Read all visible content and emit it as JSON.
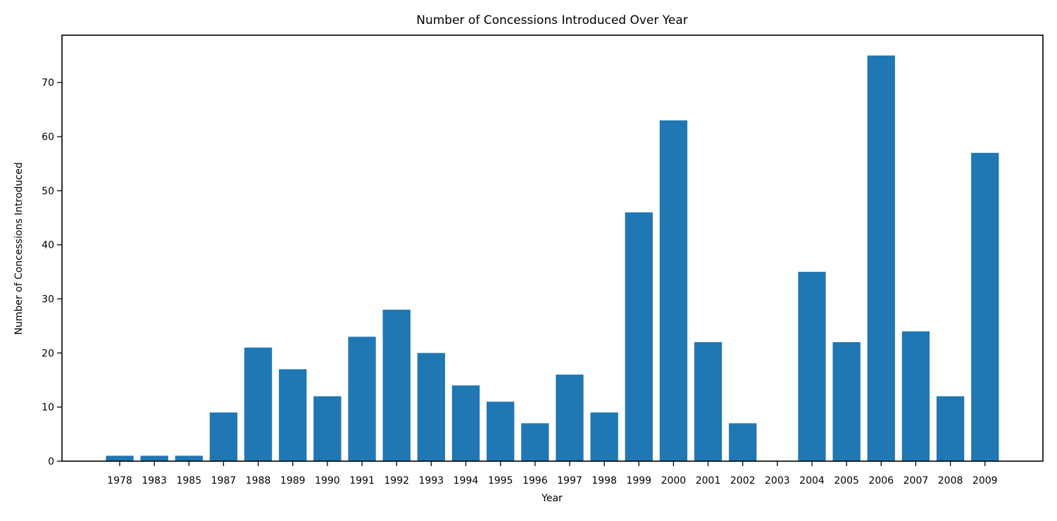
{
  "chart_data": {
    "type": "bar",
    "title": "Number of Concessions Introduced Over Year",
    "xlabel": "Year",
    "ylabel": "Number of Concessions Introduced",
    "categories": [
      "1978",
      "1983",
      "1985",
      "1987",
      "1988",
      "1989",
      "1990",
      "1991",
      "1992",
      "1993",
      "1994",
      "1995",
      "1996",
      "1997",
      "1998",
      "1999",
      "2000",
      "2001",
      "2002",
      "2003",
      "2004",
      "2005",
      "2006",
      "2007",
      "2008",
      "2009"
    ],
    "values": [
      1,
      1,
      1,
      9,
      21,
      17,
      12,
      23,
      28,
      20,
      14,
      11,
      7,
      16,
      9,
      46,
      63,
      22,
      7,
      0,
      35,
      22,
      75,
      24,
      12,
      57
    ],
    "ylim": [
      0,
      78.75
    ],
    "yticks": [
      0,
      10,
      20,
      30,
      40,
      50,
      60,
      70
    ],
    "bar_color": "#1f77b4",
    "grid": false,
    "legend": "none"
  }
}
